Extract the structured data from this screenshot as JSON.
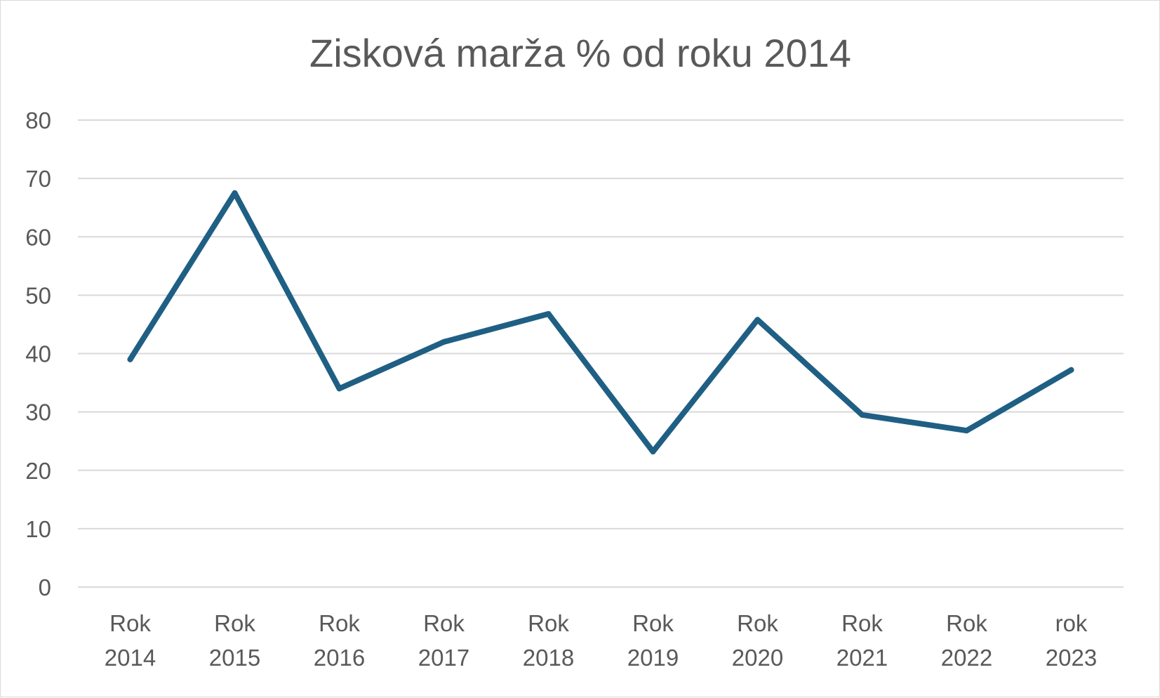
{
  "chart_data": {
    "type": "line",
    "title": "Zisková marža % od roku 2014",
    "xlabel": "",
    "ylabel": "",
    "categories": [
      [
        "Rok",
        "2014"
      ],
      [
        "Rok",
        "2015"
      ],
      [
        "Rok",
        "2016"
      ],
      [
        "Rok",
        "2017"
      ],
      [
        "Rok",
        "2018"
      ],
      [
        "Rok",
        "2019"
      ],
      [
        "Rok",
        "2020"
      ],
      [
        "Rok",
        "2021"
      ],
      [
        "Rok",
        "2022"
      ],
      [
        "rok",
        "2023"
      ]
    ],
    "series": [
      {
        "color": "#1f5f84",
        "values": [
          39,
          67.5,
          34,
          42,
          46.8,
          23.2,
          45.8,
          29.5,
          26.8,
          37.2
        ]
      }
    ],
    "ylim": [
      0,
      80
    ],
    "yticks": [
      0,
      10,
      20,
      30,
      40,
      50,
      60,
      70,
      80
    ],
    "grid": true,
    "legend": "none"
  }
}
